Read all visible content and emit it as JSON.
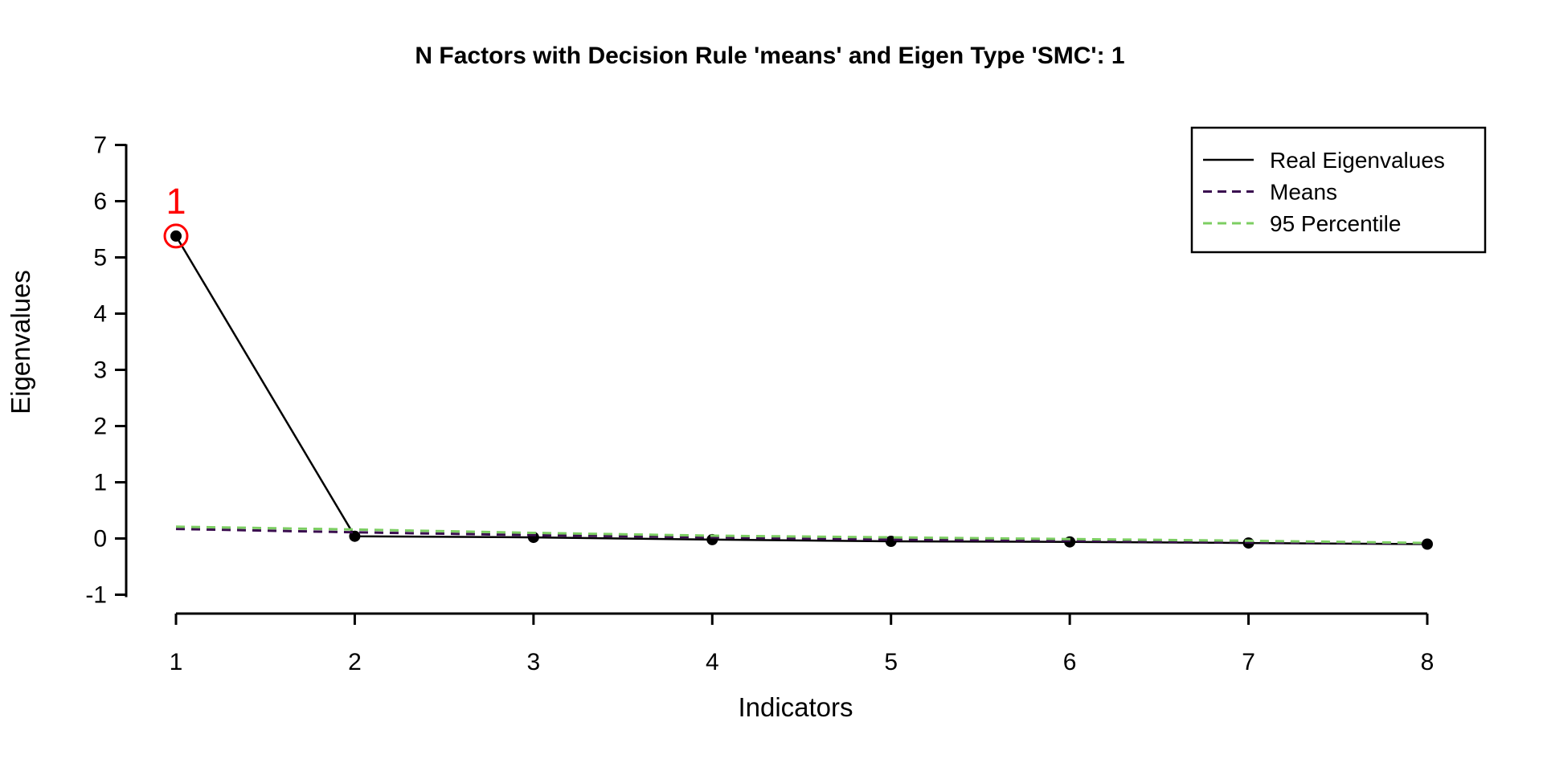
{
  "figure": {
    "background": "#ffffff"
  },
  "chart_data": {
    "type": "line",
    "title": "N Factors with Decision Rule 'means' and Eigen Type 'SMC': 1",
    "xlabel": "Indicators",
    "ylabel": "Eigenvalues",
    "x": [
      1,
      2,
      3,
      4,
      5,
      6,
      7,
      8
    ],
    "series": [
      {
        "name": "Real Eigenvalues",
        "color": "#000000",
        "style": "solid",
        "marker": "filled-circle",
        "values": [
          5.38,
          0.04,
          0.02,
          -0.02,
          -0.05,
          -0.06,
          -0.08,
          -0.1
        ]
      },
      {
        "name": "Means",
        "color": "#3A0D4F",
        "style": "dashed",
        "marker": "none",
        "values": [
          0.17,
          0.11,
          0.06,
          0.02,
          -0.02,
          -0.04,
          -0.07,
          -0.09
        ]
      },
      {
        "name": "95 Percentile",
        "color": "#7CCE62",
        "style": "dashed",
        "marker": "none",
        "values": [
          0.21,
          0.16,
          0.1,
          0.05,
          0.02,
          -0.01,
          -0.04,
          -0.08
        ]
      }
    ],
    "xticks": [
      "1",
      "2",
      "3",
      "4",
      "5",
      "6",
      "7",
      "8"
    ],
    "yticks": [
      "-1",
      "0",
      "1",
      "2",
      "3",
      "4",
      "5",
      "6",
      "7"
    ],
    "xlim": [
      1,
      8
    ],
    "ylim": [
      -1,
      7
    ],
    "grid": false,
    "legend_position": "top-right",
    "annotation": {
      "label": "1",
      "x": 1,
      "y": 5.38,
      "color": "#FF0000",
      "type": "circled-point"
    }
  }
}
